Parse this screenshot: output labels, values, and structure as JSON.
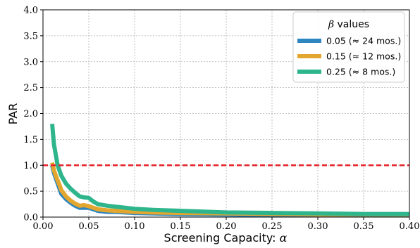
{
  "chart_data": {
    "type": "line",
    "xlabel": "Screening Capacity: ",
    "xlabel_symbol": "α",
    "ylabel": "PAR",
    "xlim": [
      0,
      0.4
    ],
    "ylim": [
      0,
      4.0
    ],
    "x_ticks": [
      "0.00",
      "0.05",
      "0.10",
      "0.15",
      "0.20",
      "0.25",
      "0.30",
      "0.35",
      "0.40"
    ],
    "y_ticks": [
      "0.0",
      "0.5",
      "1.0",
      "1.5",
      "2.0",
      "2.5",
      "3.0",
      "3.5",
      "4.0"
    ],
    "grid": true,
    "reference_line": {
      "y": 1.0,
      "style": "dashed",
      "color": "#e8202a"
    },
    "legend": {
      "title_symbol": "β",
      "title_text": " values",
      "placement": "top-right",
      "entries": [
        "0.05 (≈ 24 mos.)",
        "0.15 (≈ 12 mos.)",
        "0.25 (≈ 8 mos.)"
      ]
    },
    "series": [
      {
        "name": "0.05 (≈ 24 mos.)",
        "color": "#2e86c1",
        "x": [
          0.01,
          0.012,
          0.015,
          0.018,
          0.02,
          0.025,
          0.03,
          0.035,
          0.04,
          0.045,
          0.05,
          0.055,
          0.06,
          0.07,
          0.08,
          0.09,
          0.1,
          0.12,
          0.15,
          0.2,
          0.25,
          0.3,
          0.35,
          0.4
        ],
        "y": [
          1.0,
          0.85,
          0.7,
          0.55,
          0.45,
          0.35,
          0.28,
          0.22,
          0.18,
          0.18,
          0.18,
          0.15,
          0.12,
          0.1,
          0.1,
          0.09,
          0.08,
          0.07,
          0.06,
          0.05,
          0.04,
          0.04,
          0.04,
          0.04
        ]
      },
      {
        "name": "0.15 (≈ 12 mos.)",
        "color": "#e3a72f",
        "x": [
          0.01,
          0.012,
          0.015,
          0.018,
          0.02,
          0.025,
          0.03,
          0.035,
          0.04,
          0.045,
          0.05,
          0.055,
          0.06,
          0.07,
          0.08,
          0.09,
          0.1,
          0.12,
          0.15,
          0.2,
          0.25,
          0.3,
          0.35,
          0.4
        ],
        "y": [
          1.05,
          0.9,
          0.75,
          0.62,
          0.52,
          0.4,
          0.32,
          0.26,
          0.22,
          0.23,
          0.21,
          0.18,
          0.15,
          0.13,
          0.12,
          0.11,
          0.1,
          0.09,
          0.08,
          0.07,
          0.06,
          0.05,
          0.05,
          0.05
        ]
      },
      {
        "name": "0.25 (≈ 8 mos.)",
        "color": "#2fb58c",
        "x": [
          0.01,
          0.012,
          0.014,
          0.016,
          0.018,
          0.02,
          0.025,
          0.03,
          0.035,
          0.04,
          0.045,
          0.05,
          0.055,
          0.06,
          0.07,
          0.08,
          0.09,
          0.1,
          0.12,
          0.15,
          0.2,
          0.25,
          0.3,
          0.35,
          0.4
        ],
        "y": [
          1.8,
          1.4,
          1.2,
          1.0,
          0.9,
          0.8,
          0.65,
          0.55,
          0.47,
          0.4,
          0.38,
          0.37,
          0.3,
          0.25,
          0.22,
          0.2,
          0.18,
          0.16,
          0.14,
          0.12,
          0.09,
          0.08,
          0.07,
          0.06,
          0.06
        ]
      }
    ]
  }
}
